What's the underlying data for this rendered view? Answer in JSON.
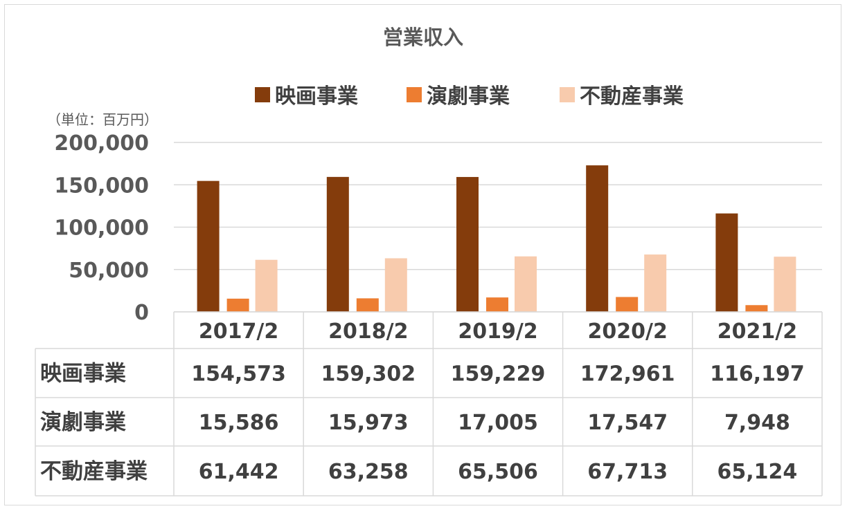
{
  "chart_data": {
    "type": "bar",
    "title": "営業収入",
    "unit_label": "（単位：百万円）",
    "categories": [
      "2017/2",
      "2018/2",
      "2019/2",
      "2020/2",
      "2021/2"
    ],
    "series": [
      {
        "name": "映画事業",
        "values": [
          154573,
          159302,
          159229,
          172961,
          116197
        ],
        "labels": [
          "154,573",
          "159,302",
          "159,229",
          "172,961",
          "116,197"
        ]
      },
      {
        "name": "演劇事業",
        "values": [
          15586,
          15973,
          17005,
          17547,
          7948
        ],
        "labels": [
          "15,586",
          "15,973",
          "17,005",
          "17,547",
          "7,948"
        ]
      },
      {
        "name": "不動産事業",
        "values": [
          61442,
          63258,
          65506,
          67713,
          65124
        ],
        "labels": [
          "61,442",
          "63,258",
          "65,506",
          "67,713",
          "65,124"
        ]
      }
    ],
    "ylim": [
      0,
      200000
    ],
    "yticks": [
      0,
      50000,
      100000,
      150000,
      200000
    ],
    "ytick_labels": [
      "0",
      "50,000",
      "100,000",
      "150,000",
      "200,000"
    ],
    "grid": true,
    "legend_position": "top",
    "data_table": true,
    "colors": [
      "#843c0c",
      "#ed7d31",
      "#f8cbad"
    ]
  }
}
